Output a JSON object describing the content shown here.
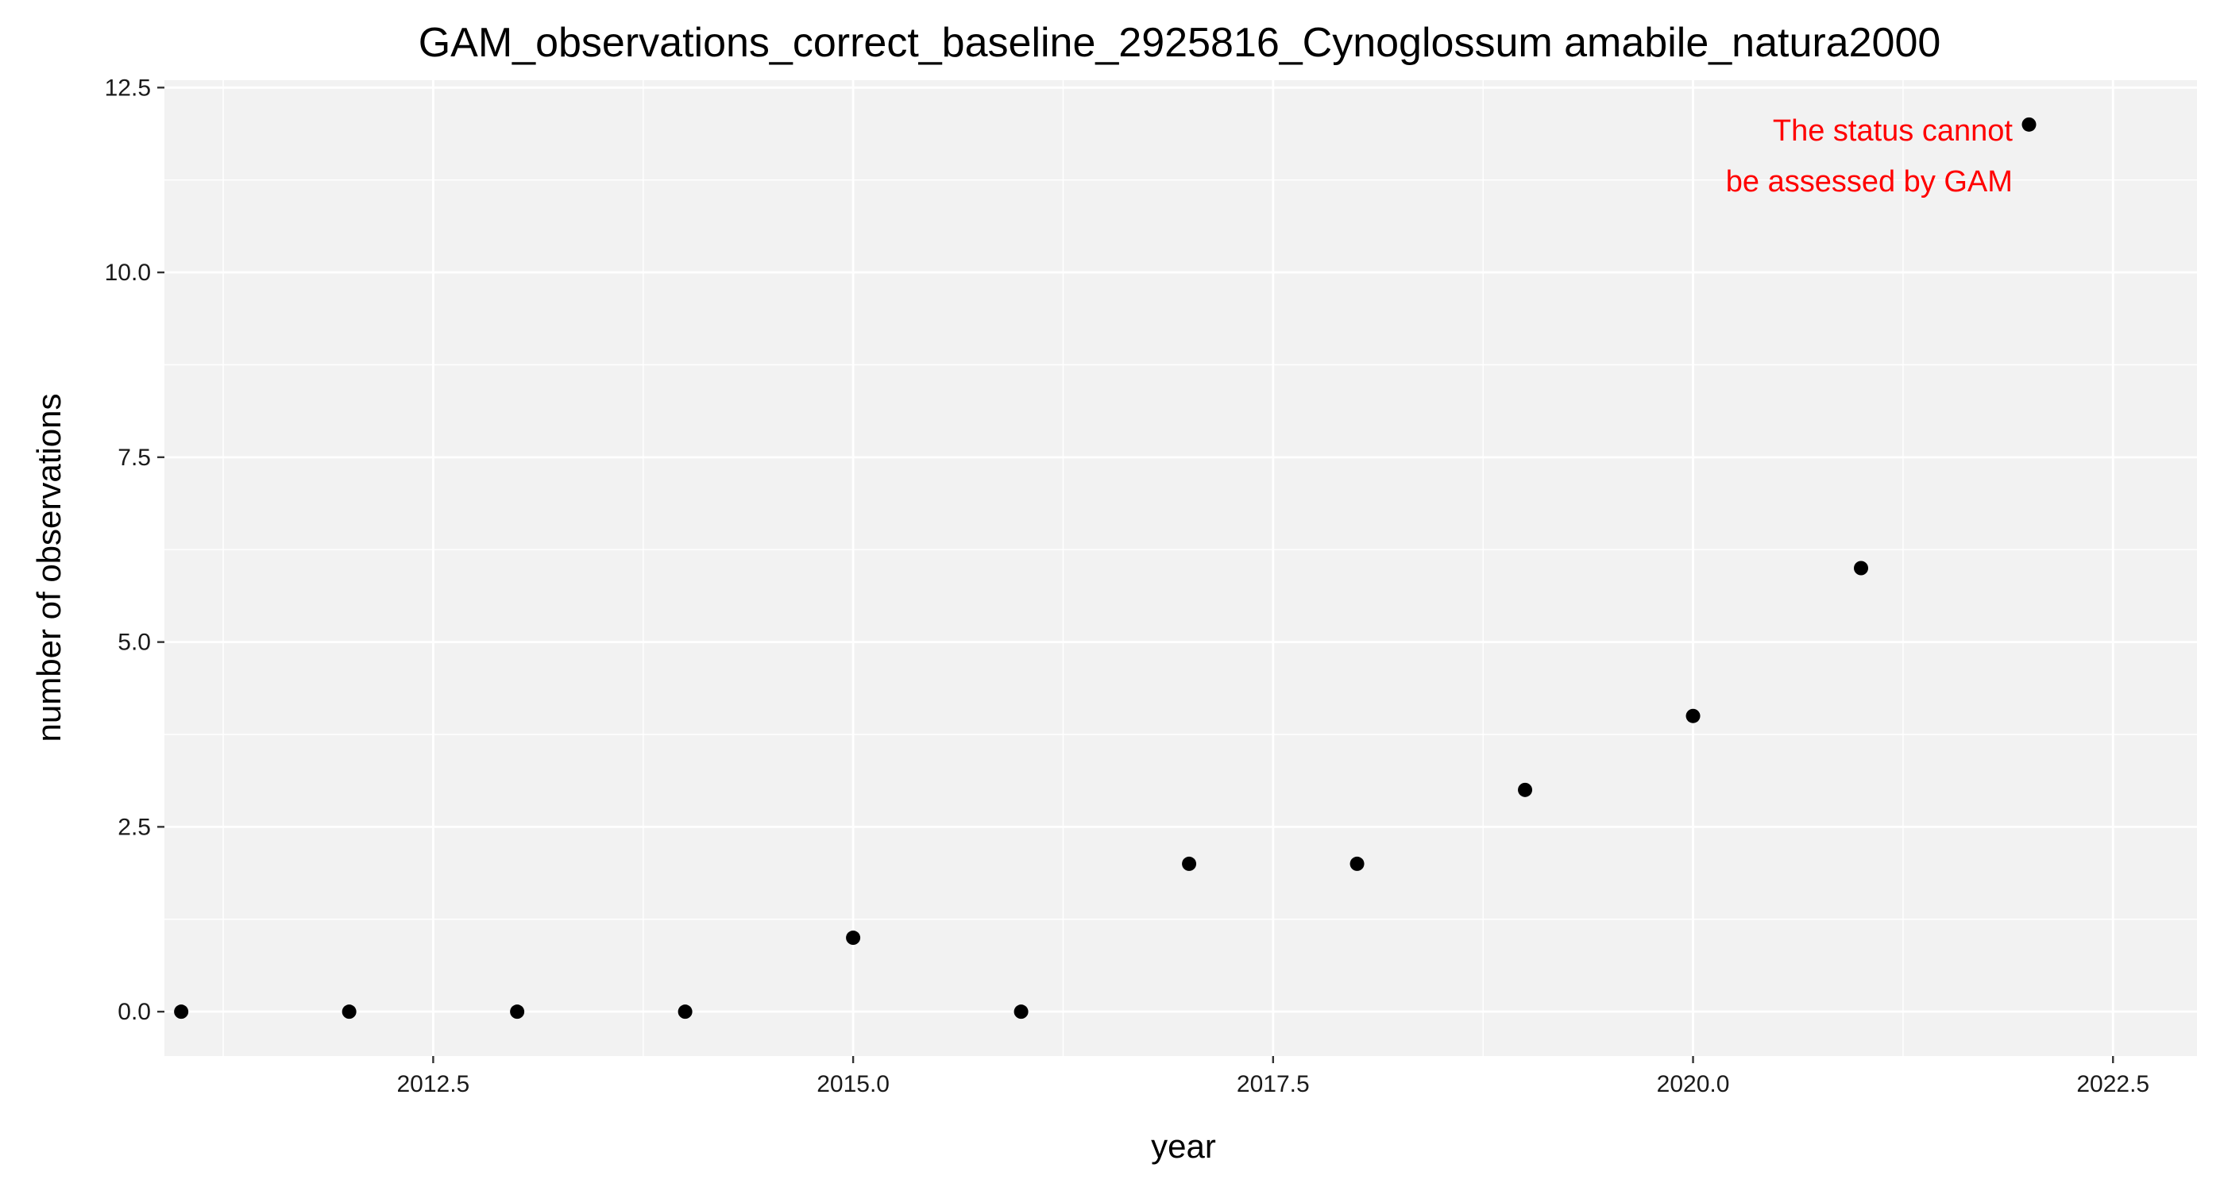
{
  "chart_data": {
    "type": "scatter",
    "title": "GAM_observations_correct_baseline_2925816_Cynoglossum amabile_natura2000",
    "xlabel": "year",
    "ylabel": "number of observations",
    "xlim": [
      2010.9,
      2023.0
    ],
    "ylim": [
      -0.6,
      12.6
    ],
    "x_ticks": [
      2012.5,
      2015.0,
      2017.5,
      2020.0,
      2022.5
    ],
    "x_tick_labels": [
      "2012.5",
      "2015.0",
      "2017.5",
      "2020.0",
      "2022.5"
    ],
    "y_ticks": [
      0,
      2.5,
      5,
      7.5,
      10,
      12.5
    ],
    "y_tick_labels": [
      "0.0",
      "2.5",
      "5.0",
      "7.5",
      "10.0",
      "12.5"
    ],
    "grid": true,
    "series": [
      {
        "x": [
          2011,
          2012,
          2013,
          2014,
          2015,
          2016,
          2017,
          2018,
          2019,
          2020,
          2021,
          2022
        ],
        "y": [
          0,
          0,
          0,
          0,
          1,
          0,
          2,
          2,
          3,
          4,
          6,
          12
        ]
      }
    ],
    "annotation": {
      "lines": [
        "The status cannot",
        "be assessed by GAM"
      ],
      "color": "#ff0000",
      "anchor": {
        "x": 2021.95,
        "y": 12.0
      }
    },
    "colors": {
      "panel_bg": "#f2f2f2",
      "grid_major": "#ffffff",
      "point": "#000000"
    }
  }
}
